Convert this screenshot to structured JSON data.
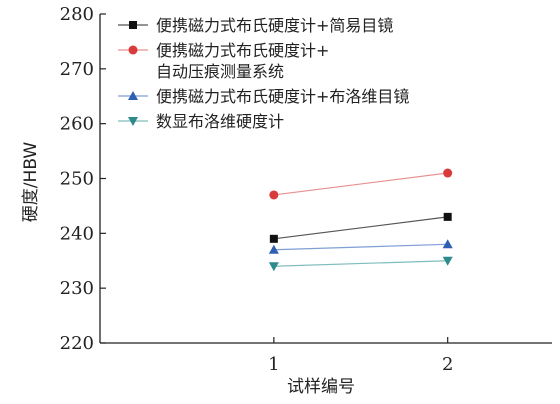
{
  "chart_data": {
    "type": "line",
    "xlabel": "试样编号",
    "ylabel": "硬度/HBW",
    "x": [
      1,
      2
    ],
    "ylim": [
      220,
      280
    ],
    "yticks": [
      220,
      230,
      240,
      250,
      260,
      270,
      280
    ],
    "xticks": [
      1,
      2
    ],
    "grid": false,
    "legend": "top-left",
    "series": [
      {
        "name_lines": [
          "便携磁力式布氏硬度计+简易目镜"
        ],
        "values": [
          239,
          243
        ],
        "color": "#111111",
        "line_color": "#555555",
        "marker": "square"
      },
      {
        "name_lines": [
          "便携磁力式布氏硬度计+",
          "自动压痕测量系统"
        ],
        "values": [
          247,
          251
        ],
        "color": "#d93a3a",
        "line_color": "#e89090",
        "marker": "circle"
      },
      {
        "name_lines": [
          "便携磁力式布氏硬度计+布洛维目镜"
        ],
        "values": [
          237,
          238
        ],
        "color": "#2f5fb3",
        "line_color": "#7f9fd6",
        "marker": "triangle-up"
      },
      {
        "name_lines": [
          "数显布洛维硬度计"
        ],
        "values": [
          234,
          235
        ],
        "color": "#2e8b8b",
        "line_color": "#7fbcbc",
        "marker": "triangle-down"
      }
    ]
  }
}
